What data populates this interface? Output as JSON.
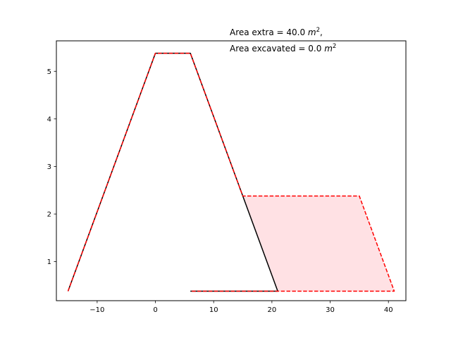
{
  "chart_data": {
    "type": "line",
    "title": "",
    "xlabel": "",
    "ylabel": "",
    "xlim": [
      -17,
      43
    ],
    "ylim": [
      0.18,
      5.64
    ],
    "xticks": [
      -10,
      0,
      10,
      20,
      30,
      40
    ],
    "yticks": [
      1,
      2,
      3,
      4,
      5
    ],
    "grid": false,
    "annotations": [
      {
        "text": "Area extra = 40.0 ",
        "unit": "m",
        "sup": "2",
        "suffix": ","
      },
      {
        "text": "Area excavated = 0.0 ",
        "unit": "m",
        "sup": "2",
        "suffix": ""
      }
    ],
    "series": [
      {
        "style": "solid",
        "color": "#000000",
        "x": [
          -15,
          0,
          6,
          21,
          6
        ],
        "y": [
          0.38,
          5.38,
          5.38,
          0.38,
          0.38
        ]
      },
      {
        "style": "dashed",
        "color": "#ff0000",
        "x": [
          -15,
          0,
          6,
          15,
          35,
          41,
          21,
          6
        ],
        "y": [
          0.38,
          5.38,
          5.38,
          2.38,
          2.38,
          0.38,
          0.38,
          0.38
        ]
      }
    ],
    "fill": {
      "color": "#ffe1e4",
      "x": [
        15,
        35,
        41,
        21
      ],
      "y": [
        2.38,
        2.38,
        0.38,
        0.38
      ]
    }
  }
}
